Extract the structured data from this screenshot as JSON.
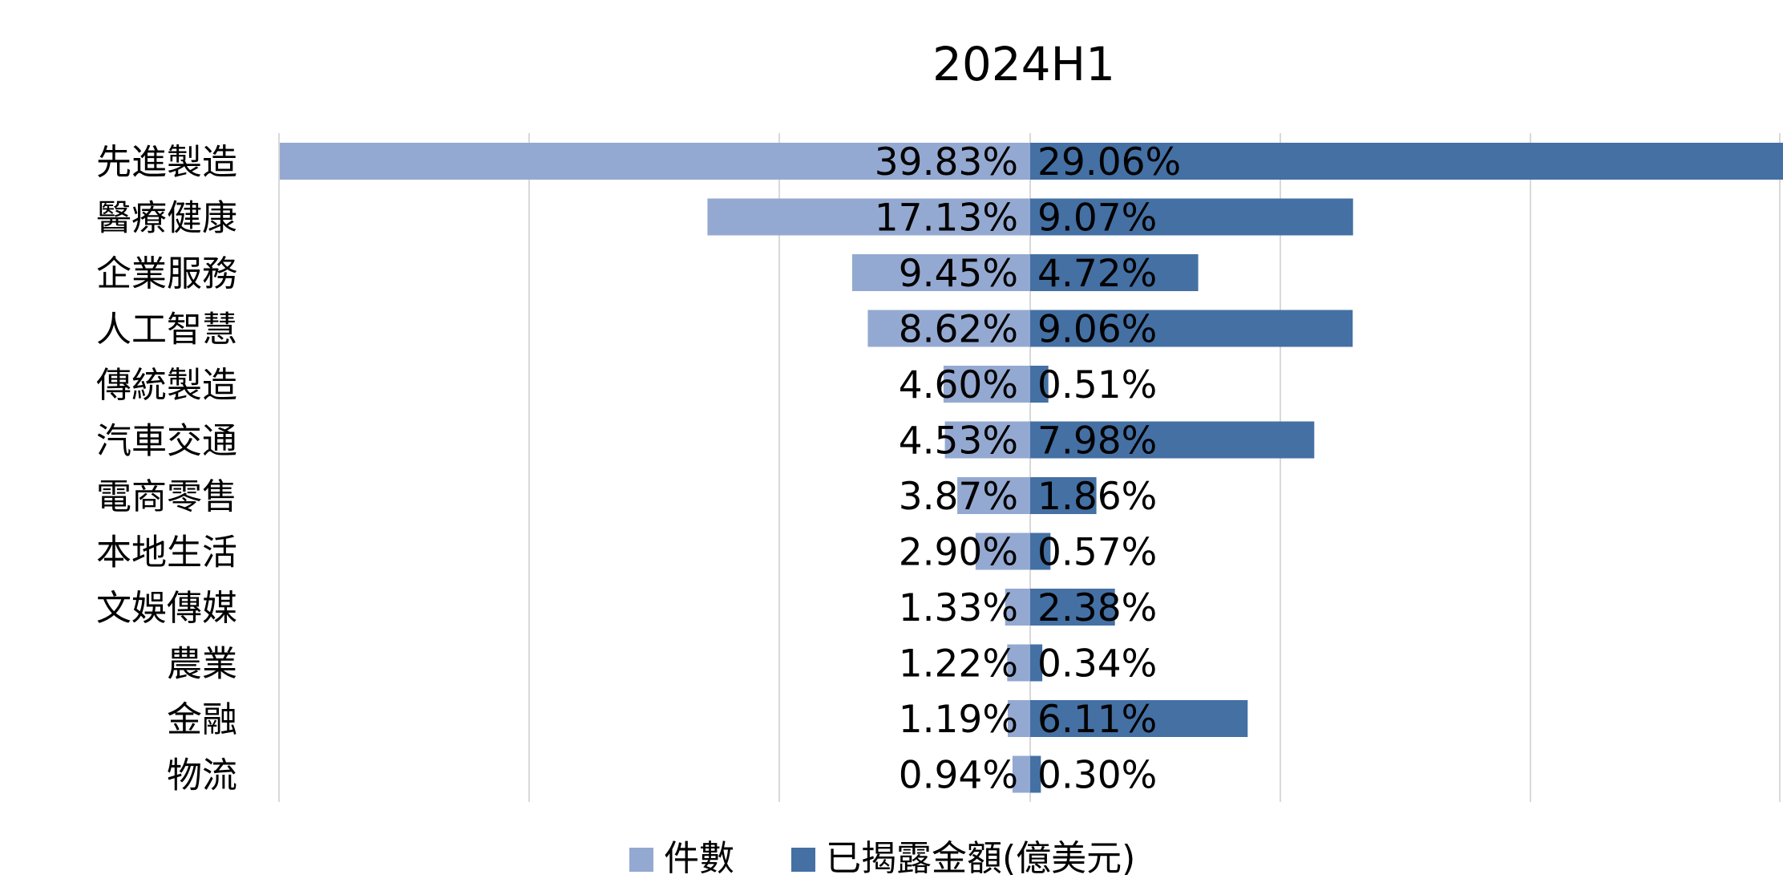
{
  "chart_data": {
    "type": "bar",
    "orientation": "horizontal",
    "layout": "diverging",
    "title": "2024H1",
    "categories": [
      "先進製造",
      "醫療健康",
      "企業服務",
      "人工智慧",
      "傳統製造",
      "汽車交通",
      "電商零售",
      "本地生活",
      "文娛傳媒",
      "農業",
      "金融",
      "物流"
    ],
    "series": [
      {
        "name": "件數",
        "side": "left",
        "color": "#94a9d1",
        "values": [
          39.83,
          17.13,
          9.45,
          8.62,
          4.6,
          4.53,
          3.87,
          2.9,
          1.33,
          1.22,
          1.19,
          0.94
        ],
        "labels": [
          "39.83%",
          "17.13%",
          "9.45%",
          "8.62%",
          "4.60%",
          "4.53%",
          "3.87%",
          "2.90%",
          "1.33%",
          "1.22%",
          "1.19%",
          "0.94%"
        ]
      },
      {
        "name": "已揭露金額(億美元)",
        "side": "right",
        "color": "#4470a4",
        "values": [
          29.06,
          9.07,
          4.72,
          9.06,
          0.51,
          7.98,
          1.86,
          0.57,
          2.38,
          0.34,
          6.11,
          0.3
        ],
        "labels": [
          "29.06%",
          "9.07%",
          "4.72%",
          "9.06%",
          "0.51%",
          "7.98%",
          "1.86%",
          "0.57%",
          "2.38%",
          "0.34%",
          "6.11%",
          "0.30%"
        ]
      }
    ],
    "legend_position": "bottom",
    "grid": true,
    "axis_labels_visible": false,
    "gridline_colour": "#d9d9d9"
  }
}
